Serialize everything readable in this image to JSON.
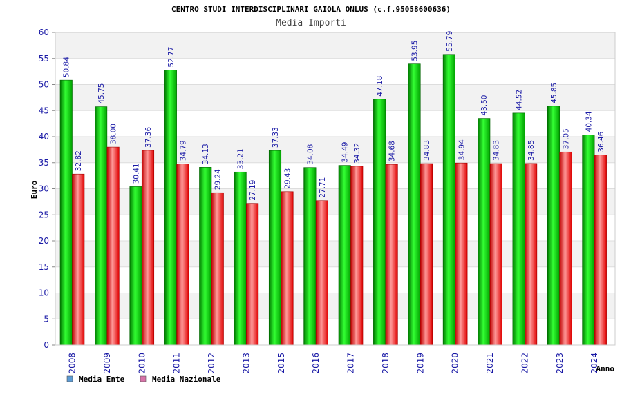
{
  "chart_data": {
    "type": "bar",
    "title": "CENTRO STUDI INTERDISCIPLINARI GAIOLA ONLUS (c.f.95058600636)",
    "subtitle": "Media Importi",
    "xlabel": "Anno",
    "ylabel": "Euro",
    "ylim": [
      0,
      60
    ],
    "yticks": [
      0,
      5,
      10,
      15,
      20,
      25,
      30,
      35,
      40,
      45,
      50,
      55,
      60
    ],
    "grid": true,
    "legend_position": "bottom-left",
    "categories": [
      "2008",
      "2009",
      "2010",
      "2011",
      "2012",
      "2013",
      "2015",
      "2016",
      "2017",
      "2018",
      "2019",
      "2020",
      "2021",
      "2022",
      "2023",
      "2024"
    ],
    "series": [
      {
        "name": "Media Ente",
        "color": "#00b400",
        "legend_color": "#5b9bd5",
        "values": [
          50.84,
          45.75,
          30.41,
          52.77,
          34.13,
          33.21,
          37.33,
          34.08,
          34.49,
          47.18,
          53.95,
          55.79,
          43.5,
          44.52,
          45.85,
          40.34
        ],
        "labels": [
          "50.84",
          "45.75",
          "30.41",
          "52.77",
          "34.13",
          "33.21",
          "37.33",
          "34.08",
          "34.49",
          "47.18",
          "53.95",
          "55.79",
          "43.50",
          "44.52",
          "45.85",
          "40.34"
        ]
      },
      {
        "name": "Media Nazionale",
        "color": "#e01010",
        "legend_color": "#d872a8",
        "values": [
          32.82,
          38.0,
          37.36,
          34.79,
          29.24,
          27.19,
          29.43,
          27.71,
          34.32,
          34.68,
          34.83,
          34.94,
          34.83,
          34.85,
          37.05,
          36.46
        ],
        "labels": [
          "32.82",
          "38.00",
          "37.36",
          "34.79",
          "29.24",
          "27.19",
          "29.43",
          "27.71",
          "34.32",
          "34.68",
          "34.83",
          "34.94",
          "34.83",
          "34.85",
          "37.05",
          "36.46"
        ]
      }
    ]
  }
}
